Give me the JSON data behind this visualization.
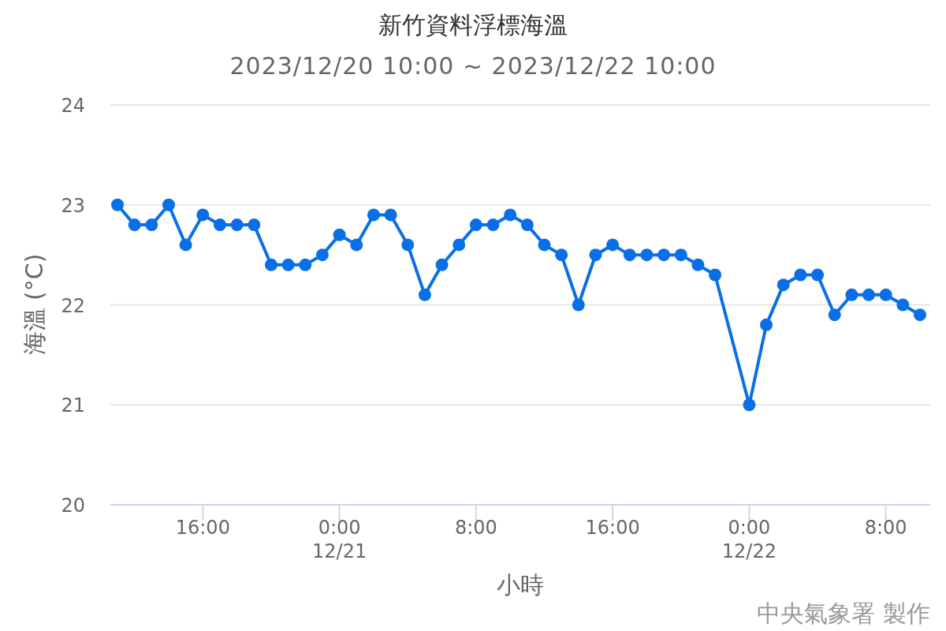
{
  "chart_data": {
    "type": "line",
    "title": "新竹資料浮標海溫",
    "subtitle": "2023/12/20 10:00 ~ 2023/12/22 10:00",
    "xlabel": "小時",
    "ylabel": "海溫 (°C)",
    "annotations": [
      "中央氣象署 製作"
    ],
    "x": [
      "2023-12-20T11:00",
      "2023-12-20T12:00",
      "2023-12-20T13:00",
      "2023-12-20T14:00",
      "2023-12-20T15:00",
      "2023-12-20T16:00",
      "2023-12-20T17:00",
      "2023-12-20T18:00",
      "2023-12-20T19:00",
      "2023-12-20T20:00",
      "2023-12-20T21:00",
      "2023-12-20T22:00",
      "2023-12-20T23:00",
      "2023-12-21T00:00",
      "2023-12-21T01:00",
      "2023-12-21T02:00",
      "2023-12-21T03:00",
      "2023-12-21T04:00",
      "2023-12-21T05:00",
      "2023-12-21T06:00",
      "2023-12-21T07:00",
      "2023-12-21T08:00",
      "2023-12-21T09:00",
      "2023-12-21T10:00",
      "2023-12-21T11:00",
      "2023-12-21T12:00",
      "2023-12-21T13:00",
      "2023-12-21T14:00",
      "2023-12-21T15:00",
      "2023-12-21T16:00",
      "2023-12-21T17:00",
      "2023-12-21T18:00",
      "2023-12-21T19:00",
      "2023-12-21T20:00",
      "2023-12-21T21:00",
      "2023-12-21T22:00",
      "2023-12-22T00:00",
      "2023-12-22T01:00",
      "2023-12-22T02:00",
      "2023-12-22T03:00",
      "2023-12-22T04:00",
      "2023-12-22T05:00",
      "2023-12-22T06:00",
      "2023-12-22T07:00",
      "2023-12-22T08:00",
      "2023-12-22T09:00",
      "2023-12-22T10:00"
    ],
    "series": [
      {
        "color": "#0a6fe6",
        "values": [
          23.0,
          22.8,
          22.8,
          23.0,
          22.6,
          22.9,
          22.8,
          22.8,
          22.8,
          22.4,
          22.4,
          22.4,
          22.5,
          22.7,
          22.6,
          22.9,
          22.9,
          22.6,
          22.1,
          22.4,
          22.6,
          22.8,
          22.8,
          22.9,
          22.8,
          22.6,
          22.5,
          22.0,
          22.5,
          22.6,
          22.5,
          22.5,
          22.5,
          22.5,
          22.4,
          22.3,
          21.0,
          21.8,
          22.2,
          22.3,
          22.3,
          21.9,
          22.1,
          22.1,
          22.1,
          22.0,
          21.9
        ]
      }
    ],
    "xlim": [
      "2023-12-20T10:35",
      "2023-12-22T10:36"
    ],
    "xticks": [
      {
        "value": "2023-12-20T16:00",
        "label": "16:00"
      },
      {
        "value": "2023-12-21T00:00",
        "label": "0:00\n12/21"
      },
      {
        "value": "2023-12-21T08:00",
        "label": "8:00"
      },
      {
        "value": "2023-12-21T16:00",
        "label": "16:00"
      },
      {
        "value": "2023-12-22T00:00",
        "label": "0:00\n12/22"
      },
      {
        "value": "2023-12-22T08:00",
        "label": "8:00"
      }
    ],
    "ylim": [
      20,
      24
    ],
    "yticks": [
      20,
      21,
      22,
      23,
      24
    ],
    "grid": "y",
    "marker": "circle",
    "line_style": "solid"
  }
}
